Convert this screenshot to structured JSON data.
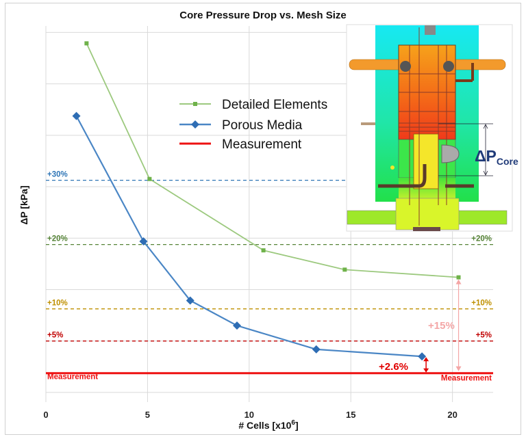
{
  "chart_data": {
    "type": "line",
    "title": "Core Pressure Drop vs. Mesh Size",
    "xlabel": "# Cells [x10",
    "xlabel_sup": "6",
    "xlabel_end": "]",
    "ylabel": "ΔP [kPa]",
    "xlim": [
      0,
      22
    ],
    "ylim": [
      -4.5,
      54
    ],
    "x_ticks": [
      0,
      5,
      10,
      15,
      20
    ],
    "x_tick_labels": [
      "0",
      "5",
      "10",
      "15",
      "20"
    ],
    "grid": true,
    "legend_placement": "top-center",
    "y_unit_note_hidden": "",
    "series": [
      {
        "name": "Detailed Elements",
        "color": "#9cc97e",
        "marker": "square",
        "x": [
          2.0,
          5.1,
          10.7,
          14.7,
          20.3
        ],
        "y": [
          51.3,
          30.2,
          19.1,
          16.1,
          14.9
        ]
      },
      {
        "name": "Porous Media",
        "color": "#4a86c5",
        "marker": "diamond",
        "x": [
          1.5,
          4.8,
          7.1,
          9.4,
          13.3,
          18.5
        ],
        "y": [
          40.0,
          20.5,
          11.3,
          7.4,
          3.7,
          2.6
        ]
      },
      {
        "name": "Measurement",
        "color": "#ee1111",
        "marker": "none"
      }
    ],
    "reference_lines": [
      {
        "label": "+30%",
        "value": 30,
        "color": "#2e75b6",
        "label_right": ""
      },
      {
        "label": "+20%",
        "value": 20,
        "color": "#548235",
        "label_right": "+20%"
      },
      {
        "label": "+10%",
        "value": 10,
        "color": "#bf9000",
        "label_right": "+10%"
      },
      {
        "label": "+5%",
        "value": 5,
        "color": "#c00000",
        "label_right": "+5%"
      },
      {
        "label": "Measurement",
        "value": 0,
        "color": "#ee1111",
        "label_right": "Measurement"
      }
    ],
    "annotations": [
      {
        "text": "+2.6%",
        "color": "#e00000"
      },
      {
        "text": "+15%",
        "color": "#f4a6a6"
      }
    ],
    "inset": {
      "label_main": "ΔP",
      "label_sub": "Core"
    }
  }
}
